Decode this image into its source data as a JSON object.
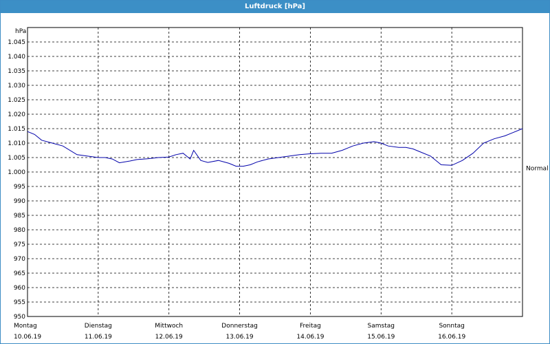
{
  "window": {
    "title": "Luftdruck [hPa]"
  },
  "chart_data": {
    "type": "line",
    "title": "Luftdruck [hPa]",
    "ylabel": "hPa",
    "ylim": [
      950,
      1050
    ],
    "yticks": [
      950,
      955,
      960,
      965,
      970,
      975,
      980,
      985,
      990,
      995,
      1000,
      1005,
      1010,
      1015,
      1020,
      1025,
      1030,
      1035,
      1040,
      1045
    ],
    "ytick_labels": [
      "950",
      "955",
      "960",
      "965",
      "970",
      "975",
      "980",
      "985",
      "990",
      "995",
      "1.000",
      "1.005",
      "1.010",
      "1.015",
      "1.020",
      "1.025",
      "1.030",
      "1.035",
      "1.040",
      "1.045"
    ],
    "xlim": [
      0,
      7
    ],
    "x_unit": "days",
    "days": [
      {
        "weekday": "Montag",
        "date": "10.06.19"
      },
      {
        "weekday": "Dienstag",
        "date": "11.06.19"
      },
      {
        "weekday": "Mittwoch",
        "date": "12.06.19"
      },
      {
        "weekday": "Donnerstag",
        "date": "13.06.19"
      },
      {
        "weekday": "Freitag",
        "date": "14.06.19"
      },
      {
        "weekday": "Samstag",
        "date": "15.06.19"
      },
      {
        "weekday": "Sonntag",
        "date": "16.06.19"
      }
    ],
    "grid": true,
    "reference_line": {
      "label": "Normal",
      "value": 1001.3
    },
    "series": [
      {
        "color": "#0000aa",
        "x": [
          0,
          0.1,
          0.2,
          0.35,
          0.5,
          0.7,
          0.85,
          1.0,
          1.1,
          1.2,
          1.3,
          1.45,
          1.55,
          1.7,
          1.85,
          2.0,
          2.1,
          2.2,
          2.25,
          2.3,
          2.35,
          2.45,
          2.55,
          2.7,
          2.85,
          2.95,
          3.05,
          3.15,
          3.25,
          3.4,
          3.55,
          3.7,
          3.85,
          4.0,
          4.15,
          4.3,
          4.45,
          4.6,
          4.75,
          4.9,
          5.0,
          5.1,
          5.25,
          5.35,
          5.45,
          5.55,
          5.7,
          5.85,
          6.0,
          6.15,
          6.3,
          6.45,
          6.6,
          6.75,
          6.85,
          7.0
        ],
        "values": [
          1014,
          1013,
          1011,
          1010,
          1009,
          1006,
          1005.5,
          1005,
          1005,
          1004.5,
          1003.2,
          1003.8,
          1004.3,
          1004.6,
          1005,
          1005.2,
          1006,
          1006.5,
          1005.5,
          1004.5,
          1007.5,
          1004,
          1003.3,
          1004,
          1003,
          1002,
          1002,
          1002.5,
          1003.5,
          1004.5,
          1005,
          1005.5,
          1006,
          1006.3,
          1006.5,
          1006.5,
          1007.5,
          1009,
          1010,
          1010.5,
          1010,
          1009,
          1008.5,
          1008.5,
          1008,
          1007,
          1005.5,
          1002.5,
          1002.3,
          1004,
          1006.5,
          1010,
          1011.5,
          1012.5,
          1013.5,
          1015
        ]
      }
    ]
  }
}
